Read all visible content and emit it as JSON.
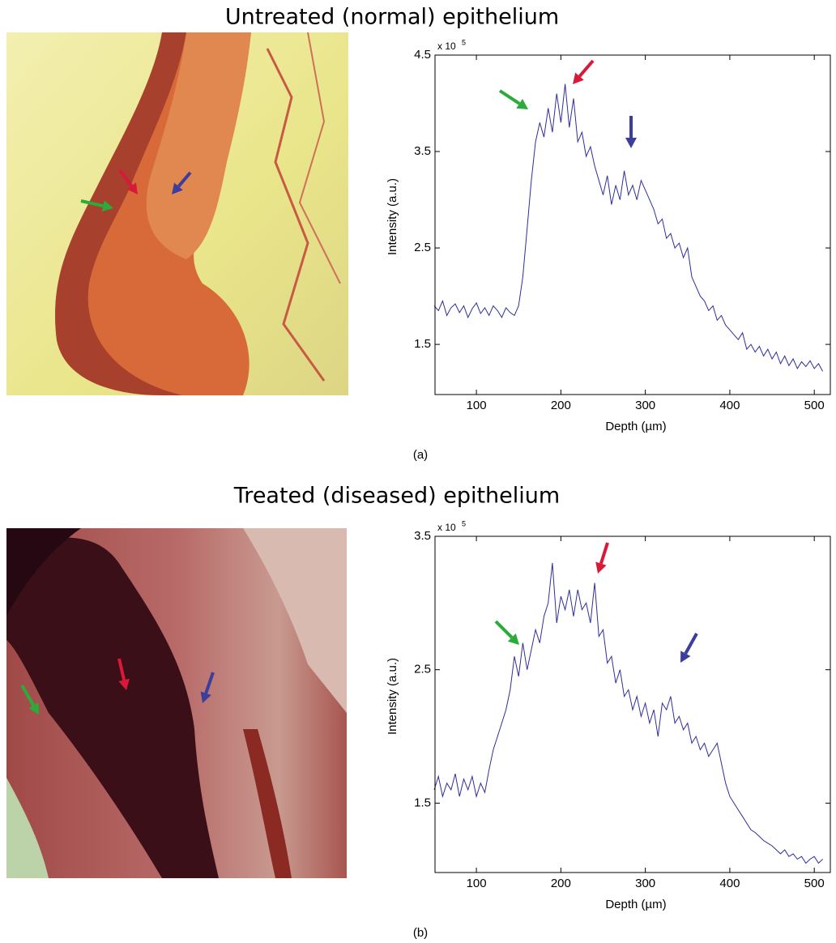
{
  "chart_data": [
    {
      "type": "line",
      "title": "Untreated (normal) epithelium",
      "panel_label": "(a)",
      "xlabel": "Depth (µm)",
      "ylabel": "Intensity (a.u.)",
      "scale_label": "x 10",
      "scale_exponent": "5",
      "xlim": [
        51,
        519
      ],
      "ylim": [
        0.98,
        4.5
      ],
      "xticks": [
        100,
        200,
        300,
        400,
        500
      ],
      "yticks": [
        1.5,
        2.5,
        3.5,
        4.5
      ],
      "x": [
        50,
        55,
        60,
        65,
        70,
        75,
        80,
        85,
        90,
        95,
        100,
        105,
        110,
        115,
        120,
        125,
        130,
        135,
        140,
        145,
        150,
        155,
        160,
        165,
        170,
        175,
        180,
        185,
        190,
        195,
        200,
        205,
        210,
        215,
        220,
        225,
        230,
        235,
        240,
        245,
        250,
        255,
        260,
        265,
        270,
        275,
        280,
        285,
        290,
        295,
        300,
        305,
        310,
        315,
        320,
        325,
        330,
        335,
        340,
        345,
        350,
        355,
        360,
        365,
        370,
        375,
        380,
        385,
        390,
        395,
        400,
        405,
        410,
        415,
        420,
        425,
        430,
        435,
        440,
        445,
        450,
        455,
        460,
        465,
        470,
        475,
        480,
        485,
        490,
        495,
        500,
        505,
        510
      ],
      "series": [
        {
          "color": "#2e2e9a",
          "values": [
            1.9,
            1.85,
            1.95,
            1.8,
            1.88,
            1.92,
            1.83,
            1.9,
            1.78,
            1.87,
            1.93,
            1.82,
            1.88,
            1.8,
            1.9,
            1.85,
            1.78,
            1.88,
            1.83,
            1.8,
            1.9,
            2.2,
            2.7,
            3.2,
            3.6,
            3.8,
            3.65,
            3.95,
            3.7,
            4.1,
            3.8,
            4.2,
            3.75,
            4.05,
            3.6,
            3.7,
            3.45,
            3.55,
            3.35,
            3.2,
            3.05,
            3.25,
            2.95,
            3.15,
            3.0,
            3.3,
            3.05,
            3.15,
            3.0,
            3.2,
            3.1,
            3.0,
            2.9,
            2.75,
            2.8,
            2.6,
            2.65,
            2.5,
            2.55,
            2.4,
            2.5,
            2.2,
            2.1,
            2.0,
            1.95,
            1.85,
            1.9,
            1.75,
            1.8,
            1.7,
            1.65,
            1.6,
            1.55,
            1.62,
            1.45,
            1.5,
            1.42,
            1.48,
            1.38,
            1.45,
            1.35,
            1.42,
            1.3,
            1.38,
            1.28,
            1.35,
            1.25,
            1.32,
            1.27,
            1.33,
            1.25,
            1.3,
            1.22
          ]
        }
      ]
    },
    {
      "type": "line",
      "title": "Treated (diseased) epithelium",
      "panel_label": "(b)",
      "xlabel": "Depth (µm)",
      "ylabel": "Intensity (a.u.)",
      "scale_label": "x 10",
      "scale_exponent": "5",
      "xlim": [
        51,
        519
      ],
      "ylim": [
        0.98,
        3.5
      ],
      "xticks": [
        100,
        200,
        300,
        400,
        500
      ],
      "yticks": [
        1.5,
        2.5,
        3.5
      ],
      "x": [
        50,
        55,
        60,
        65,
        70,
        75,
        80,
        85,
        90,
        95,
        100,
        105,
        110,
        115,
        120,
        125,
        130,
        135,
        140,
        145,
        150,
        155,
        160,
        165,
        170,
        175,
        180,
        185,
        190,
        195,
        200,
        205,
        210,
        215,
        220,
        225,
        230,
        235,
        240,
        245,
        250,
        255,
        260,
        265,
        270,
        275,
        280,
        285,
        290,
        295,
        300,
        305,
        310,
        315,
        320,
        325,
        330,
        335,
        340,
        345,
        350,
        355,
        360,
        365,
        370,
        375,
        380,
        385,
        390,
        395,
        400,
        405,
        410,
        415,
        420,
        425,
        430,
        435,
        440,
        445,
        450,
        455,
        460,
        465,
        470,
        475,
        480,
        485,
        490,
        495,
        500,
        505,
        510
      ],
      "series": [
        {
          "color": "#2e2e9a",
          "values": [
            1.6,
            1.7,
            1.55,
            1.65,
            1.6,
            1.72,
            1.55,
            1.68,
            1.6,
            1.7,
            1.55,
            1.65,
            1.58,
            1.75,
            1.9,
            2.0,
            2.1,
            2.2,
            2.35,
            2.6,
            2.45,
            2.7,
            2.5,
            2.65,
            2.8,
            2.7,
            2.9,
            3.0,
            3.3,
            2.85,
            3.05,
            2.95,
            3.1,
            2.9,
            3.1,
            2.95,
            3.0,
            2.85,
            3.15,
            2.75,
            2.8,
            2.55,
            2.6,
            2.4,
            2.5,
            2.3,
            2.35,
            2.2,
            2.3,
            2.15,
            2.25,
            2.1,
            2.2,
            2.0,
            2.25,
            2.2,
            2.3,
            2.1,
            2.15,
            2.05,
            2.1,
            1.95,
            2.0,
            1.9,
            1.95,
            1.85,
            1.9,
            1.95,
            1.8,
            1.65,
            1.55,
            1.5,
            1.45,
            1.4,
            1.35,
            1.3,
            1.28,
            1.25,
            1.22,
            1.2,
            1.18,
            1.15,
            1.12,
            1.15,
            1.1,
            1.12,
            1.08,
            1.1,
            1.05,
            1.08,
            1.1,
            1.05,
            1.08
          ]
        }
      ]
    }
  ]
}
